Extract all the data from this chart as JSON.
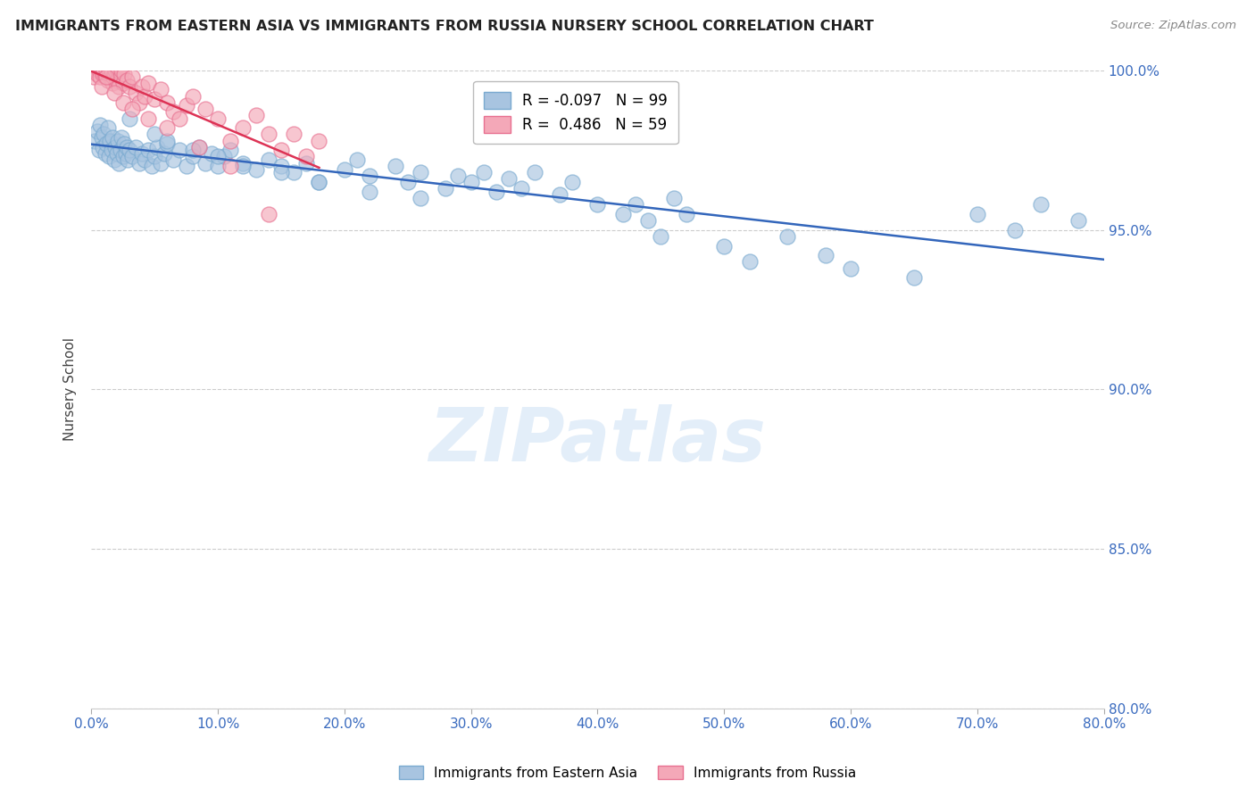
{
  "title": "IMMIGRANTS FROM EASTERN ASIA VS IMMIGRANTS FROM RUSSIA NURSERY SCHOOL CORRELATION CHART",
  "source": "Source: ZipAtlas.com",
  "ylabel_label": "Nursery School",
  "xlim": [
    0.0,
    80.0
  ],
  "ylim": [
    80.0,
    100.0
  ],
  "blue_R": -0.097,
  "blue_N": 99,
  "pink_R": 0.486,
  "pink_N": 59,
  "blue_color": "#a8c4e0",
  "pink_color": "#f4a8b8",
  "blue_edge_color": "#7aaad0",
  "pink_edge_color": "#e87090",
  "blue_line_color": "#3366bb",
  "pink_line_color": "#dd3355",
  "legend_label_blue": "Immigrants from Eastern Asia",
  "legend_label_pink": "Immigrants from Russia",
  "watermark": "ZIPatlas",
  "blue_scatter_x": [
    0.3,
    0.5,
    0.6,
    0.7,
    0.8,
    0.9,
    1.0,
    1.1,
    1.2,
    1.3,
    1.4,
    1.5,
    1.6,
    1.7,
    1.8,
    1.9,
    2.0,
    2.1,
    2.2,
    2.3,
    2.4,
    2.5,
    2.6,
    2.7,
    2.8,
    2.9,
    3.0,
    3.2,
    3.5,
    3.8,
    4.0,
    4.2,
    4.5,
    4.8,
    5.0,
    5.2,
    5.5,
    5.8,
    6.0,
    6.5,
    7.0,
    7.5,
    8.0,
    8.5,
    9.0,
    9.5,
    10.0,
    10.5,
    11.0,
    12.0,
    13.0,
    14.0,
    15.0,
    16.0,
    17.0,
    18.0,
    20.0,
    21.0,
    22.0,
    24.0,
    25.0,
    26.0,
    28.0,
    29.0,
    30.0,
    31.0,
    32.0,
    33.0,
    34.0,
    35.0,
    37.0,
    38.0,
    40.0,
    42.0,
    43.0,
    44.0,
    45.0,
    46.0,
    47.0,
    50.0,
    52.0,
    55.0,
    58.0,
    60.0,
    65.0,
    70.0,
    73.0,
    75.0,
    78.0,
    3.0,
    5.0,
    6.0,
    8.0,
    10.0,
    12.0,
    15.0,
    18.0,
    22.0,
    26.0
  ],
  "blue_scatter_y": [
    97.8,
    98.1,
    97.5,
    98.3,
    97.9,
    97.6,
    98.0,
    97.4,
    97.7,
    98.2,
    97.3,
    97.8,
    97.5,
    97.9,
    97.2,
    97.6,
    97.4,
    97.8,
    97.1,
    97.5,
    97.9,
    97.3,
    97.7,
    97.4,
    97.6,
    97.2,
    97.5,
    97.3,
    97.6,
    97.1,
    97.4,
    97.2,
    97.5,
    97.0,
    97.3,
    97.6,
    97.1,
    97.4,
    97.7,
    97.2,
    97.5,
    97.0,
    97.3,
    97.6,
    97.1,
    97.4,
    97.0,
    97.3,
    97.5,
    97.1,
    96.9,
    97.2,
    97.0,
    96.8,
    97.1,
    96.5,
    96.9,
    97.2,
    96.7,
    97.0,
    96.5,
    96.8,
    96.3,
    96.7,
    96.5,
    96.8,
    96.2,
    96.6,
    96.3,
    96.8,
    96.1,
    96.5,
    95.8,
    95.5,
    95.8,
    95.3,
    94.8,
    96.0,
    95.5,
    94.5,
    94.0,
    94.8,
    94.2,
    93.8,
    93.5,
    95.5,
    95.0,
    95.8,
    95.3,
    98.5,
    98.0,
    97.8,
    97.5,
    97.3,
    97.0,
    96.8,
    96.5,
    96.2,
    96.0
  ],
  "pink_scatter_x": [
    0.2,
    0.4,
    0.5,
    0.6,
    0.7,
    0.8,
    0.9,
    1.0,
    1.1,
    1.2,
    1.3,
    1.4,
    1.5,
    1.6,
    1.7,
    1.8,
    1.9,
    2.0,
    2.1,
    2.2,
    2.3,
    2.4,
    2.5,
    2.6,
    2.8,
    3.0,
    3.2,
    3.5,
    3.8,
    4.0,
    4.2,
    4.5,
    5.0,
    5.5,
    6.0,
    6.5,
    7.0,
    7.5,
    8.0,
    9.0,
    10.0,
    11.0,
    12.0,
    13.0,
    14.0,
    15.0,
    16.0,
    17.0,
    18.0,
    0.8,
    1.2,
    1.8,
    2.5,
    3.2,
    4.5,
    6.0,
    8.5,
    11.0,
    14.0
  ],
  "pink_scatter_y": [
    99.8,
    100.0,
    99.9,
    100.0,
    99.8,
    100.0,
    99.9,
    100.0,
    99.8,
    100.0,
    99.7,
    100.0,
    99.8,
    100.0,
    99.6,
    99.9,
    100.0,
    99.7,
    100.0,
    99.5,
    99.8,
    100.0,
    99.6,
    99.9,
    99.7,
    99.5,
    99.8,
    99.3,
    99.0,
    99.5,
    99.2,
    99.6,
    99.1,
    99.4,
    99.0,
    98.7,
    98.5,
    98.9,
    99.2,
    98.8,
    98.5,
    97.8,
    98.2,
    98.6,
    98.0,
    97.5,
    98.0,
    97.3,
    97.8,
    99.5,
    99.8,
    99.3,
    99.0,
    98.8,
    98.5,
    98.2,
    97.6,
    97.0,
    95.5
  ],
  "pink_line_x_end": 18.0
}
